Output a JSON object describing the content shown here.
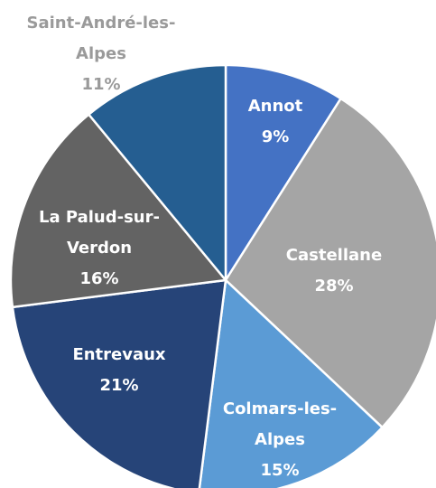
{
  "chart_data": {
    "type": "pie",
    "categories": [
      "Annot",
      "Castellane",
      "Colmars-les-Alpes",
      "Entrevaux",
      "La Palud-sur-Verdon",
      "Saint-André-les-Alpes"
    ],
    "values": [
      9,
      28,
      15,
      21,
      16,
      11
    ],
    "value_labels": [
      "9%",
      "28%",
      "15%",
      "21%",
      "16%",
      "11%"
    ],
    "colors": [
      "#4472c4",
      "#a5a5a5",
      "#5b9bd5",
      "#264478",
      "#636363",
      "#255e91"
    ]
  }
}
